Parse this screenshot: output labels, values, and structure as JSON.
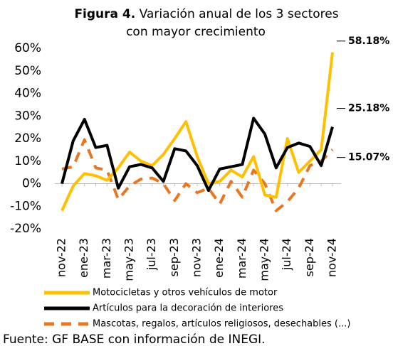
{
  "chart_data": {
    "type": "line",
    "title_prefix": "Figura 4.",
    "title": [
      "Variación anual de los 3 sectores",
      "con mayor crecimiento"
    ],
    "categories": [
      "nov-22",
      null,
      "ene-23",
      null,
      "mar-23",
      null,
      "may-23",
      null,
      "jul-23",
      null,
      "sep-23",
      null,
      "nov-23",
      null,
      "ene-24",
      null,
      "mar-24",
      null,
      "may-24",
      null,
      "jul-24",
      null,
      "sep-24",
      null,
      "nov-24"
    ],
    "series": [
      {
        "name": "Motocicletas y otros vehículos de motor",
        "color": "#FFC000",
        "dashed": false,
        "values": [
          -12,
          -1,
          4.5,
          3.5,
          1.5,
          7,
          14,
          10,
          8,
          13,
          20,
          27.5,
          12,
          0,
          1,
          6,
          3,
          12,
          -5,
          -6,
          20,
          5,
          10,
          15,
          58.18
        ],
        "value_labels": [
          null,
          null,
          null,
          null,
          null,
          null,
          null,
          null,
          null,
          null,
          null,
          null,
          null,
          null,
          null,
          null,
          null,
          null,
          null,
          null,
          null,
          null,
          null,
          null,
          "58.18%"
        ]
      },
      {
        "name": "Artículos para la decoración de interiores",
        "color": "#000000",
        "dashed": false,
        "values": [
          0,
          19,
          28.5,
          16,
          17,
          -2,
          7.5,
          8.5,
          7,
          1,
          15.5,
          14.5,
          8,
          -3,
          6.5,
          7.5,
          8.5,
          29,
          22,
          7,
          16,
          18,
          16.5,
          8,
          25.18
        ],
        "value_labels": [
          null,
          null,
          null,
          null,
          null,
          null,
          null,
          null,
          null,
          null,
          null,
          null,
          null,
          null,
          null,
          null,
          null,
          null,
          null,
          null,
          null,
          null,
          null,
          null,
          "25.18%"
        ]
      },
      {
        "name": "Mascotas, regalos, artículos religiosos, desechables (...)",
        "color": "#E87722",
        "dashed": true,
        "values": [
          6.5,
          7.5,
          19.5,
          7,
          6,
          -7,
          -1,
          2,
          2.5,
          0,
          -7.5,
          0,
          -4,
          -2,
          -9,
          1,
          -6,
          6,
          0,
          -12,
          -8,
          -2,
          8,
          10,
          15.07
        ],
        "value_labels": [
          null,
          null,
          null,
          null,
          null,
          null,
          null,
          null,
          null,
          null,
          null,
          null,
          null,
          null,
          null,
          null,
          null,
          null,
          null,
          null,
          null,
          null,
          null,
          null,
          "15.07%"
        ]
      }
    ],
    "ylim": [
      -20,
      60
    ],
    "yticks": [
      {
        "value": -20,
        "label": "-20%"
      },
      {
        "value": -10,
        "label": "-10%"
      },
      {
        "value": 0,
        "label": "0%"
      },
      {
        "value": 10,
        "label": "10%"
      },
      {
        "value": 20,
        "label": "20%"
      },
      {
        "value": 30,
        "label": "30%"
      },
      {
        "value": 40,
        "label": "40%"
      },
      {
        "value": 50,
        "label": "50%"
      },
      {
        "value": 60,
        "label": "60%"
      }
    ],
    "grid": false,
    "legend": "bottom",
    "source": "Fuente: GF BASE con información de INEGI."
  }
}
